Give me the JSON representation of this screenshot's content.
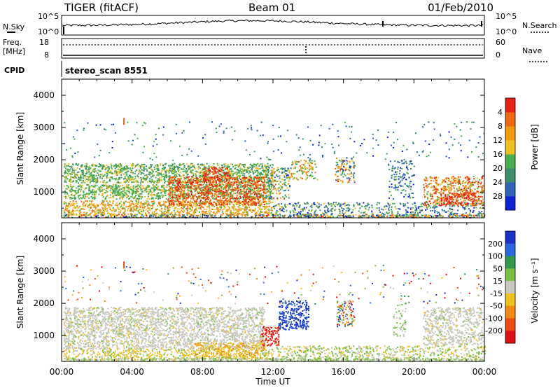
{
  "header": {
    "radar": "TIGER (fitACF)",
    "beam": "Beam 01",
    "date": "01/Feb/2010"
  },
  "strip": {
    "nsky_label": "N.Sky",
    "nsearch_label": "N.Search",
    "nsky_ticks": [
      "10^5",
      "10^0"
    ],
    "nsearch_ticks": [
      "10^5",
      "10^0"
    ],
    "freq_label": "Freq.",
    "freq_unit": "[MHz]",
    "freq_ticks": [
      "18",
      "8"
    ],
    "nave_label": "Nave",
    "nave_ticks": [
      "60",
      "0"
    ],
    "cpid_label": "CPID",
    "cpid_value": "stereo_scan 8551"
  },
  "axes": {
    "x_ticks": [
      "00:00",
      "04:00",
      "08:00",
      "12:00",
      "16:00",
      "20:00",
      "00:00"
    ],
    "x_label": "Time UT",
    "y_ticks": [
      "1000",
      "2000",
      "3000",
      "4000"
    ],
    "y_label": "Slant Range [km]"
  },
  "colorbars": {
    "power": {
      "label": "Power [dB]",
      "ticks": [
        "4",
        "8",
        "12",
        "16",
        "20",
        "24",
        "28"
      ],
      "colors": [
        "#0b22d6",
        "#2b63b8",
        "#3a8f6a",
        "#48b04a",
        "#f0c020",
        "#f59a10",
        "#f06810",
        "#e82010"
      ]
    },
    "velocity": {
      "label": "Velocity [m s⁻¹]",
      "ticks": [
        "200",
        "100",
        "50",
        "15",
        "-15",
        "-50",
        "-100",
        "-200"
      ],
      "colors": [
        "#1832c8",
        "#2868e0",
        "#2e9848",
        "#78c040",
        "#c8c8c0",
        "#f0c020",
        "#f08a10",
        "#e84a10",
        "#e01010"
      ]
    }
  },
  "chart_data": [
    {
      "type": "heatmap",
      "title": "Power",
      "x_range": [
        "00:00",
        "00:00"
      ],
      "ylim": [
        200,
        4500
      ],
      "xlabel": "Time UT",
      "ylabel": "Slant Range [km]",
      "colorbar_label": "Power [dB]",
      "colorbar_ticks": [
        4,
        8,
        12,
        16,
        20,
        24,
        28
      ]
    },
    {
      "type": "heatmap",
      "title": "Velocity",
      "x_range": [
        "00:00",
        "00:00"
      ],
      "ylim": [
        200,
        4500
      ],
      "xlabel": "Time UT",
      "ylabel": "Slant Range [km]",
      "colorbar_label": "Velocity [m s⁻¹]",
      "colorbar_ticks": [
        200,
        100,
        50,
        15,
        -15,
        -50,
        -100,
        -200
      ]
    }
  ]
}
